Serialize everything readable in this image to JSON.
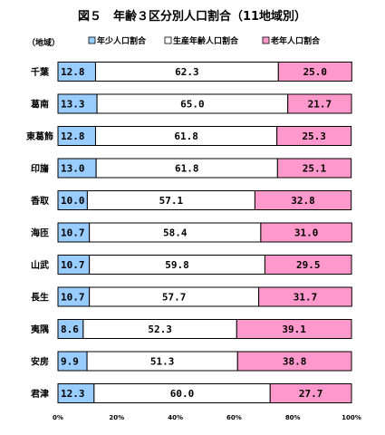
{
  "chart_data": {
    "type": "bar",
    "orientation": "horizontal",
    "stacked": true,
    "title": "図５　年齢３区分別人口割合（11地域別）",
    "category_header": "（地域）",
    "categories": [
      "千葉",
      "葛南",
      "東葛飾",
      "印旛",
      "香取",
      "海匝",
      "山武",
      "長生",
      "夷隅",
      "安房",
      "君津"
    ],
    "series": [
      {
        "name": "年少人口割合",
        "color": "#99ccff",
        "values": [
          12.8,
          13.3,
          12.8,
          13.0,
          10.0,
          10.7,
          10.7,
          10.7,
          8.6,
          9.9,
          12.3
        ],
        "labels": [
          "12.8",
          "13.3",
          "12.8",
          "13.0",
          "10.0",
          "10.7",
          "10.7",
          "10.7",
          "8.6",
          "9.9",
          "12.3"
        ]
      },
      {
        "name": "生産年齢人口割合",
        "color": "#ffffff",
        "values": [
          62.3,
          65.0,
          61.8,
          61.8,
          57.1,
          58.4,
          59.8,
          57.7,
          52.3,
          51.3,
          60.0
        ],
        "labels": [
          "62.3",
          "65.0",
          "61.8",
          "61.8",
          "57.1",
          "58.4",
          "59.8",
          "57.7",
          "52.3",
          "51.3",
          "60.0"
        ]
      },
      {
        "name": "老年人口割合",
        "color": "#ff99cc",
        "values": [
          25.0,
          21.7,
          25.3,
          25.1,
          32.8,
          31.0,
          29.5,
          31.7,
          39.1,
          38.8,
          27.7
        ],
        "labels": [
          "25.0",
          "21.7",
          "25.3",
          "25.1",
          "32.8",
          "31.0",
          "29.5",
          "31.7",
          "39.1",
          "38.8",
          "27.7"
        ]
      }
    ],
    "xlim": [
      0,
      100
    ],
    "xticks": [
      "0%",
      "20%",
      "40%",
      "60%",
      "80%",
      "100%"
    ],
    "grid": false,
    "legend_position": "top"
  }
}
